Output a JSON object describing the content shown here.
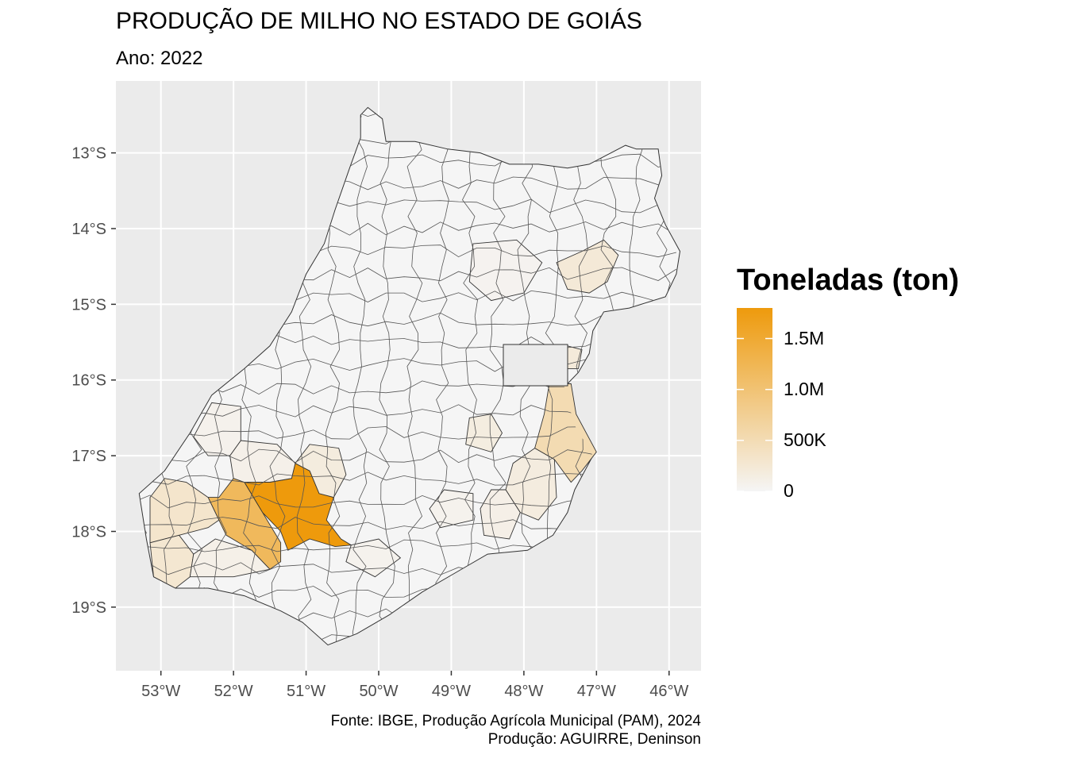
{
  "title": "PRODUÇÃO DE MILHO NO ESTADO DE GOIÁS",
  "subtitle": "Ano: 2022",
  "caption": {
    "line1": "Fonte: IBGE, Produção Agrícola Municipal (PAM), 2024",
    "line2": "Produção: AGUIRRE, Deninson"
  },
  "colors": {
    "panel": "#EBEBEB",
    "grid": "#FFFFFF",
    "low": "#F5F5F5",
    "high": "#EE9A0C",
    "border": "#333333"
  },
  "legend": {
    "title": "Toneladas (ton)",
    "min": 0,
    "max": 1800000,
    "breaks": [
      {
        "value": 0,
        "label": "0"
      },
      {
        "value": 500000,
        "label": "500K"
      },
      {
        "value": 1000000,
        "label": "1.0M"
      },
      {
        "value": 1500000,
        "label": "1.5M"
      }
    ]
  },
  "chart_data": {
    "type": "choropleth",
    "x_ticks": [
      {
        "value": -53,
        "label": "53°W"
      },
      {
        "value": -52,
        "label": "52°W"
      },
      {
        "value": -51,
        "label": "51°W"
      },
      {
        "value": -50,
        "label": "50°W"
      },
      {
        "value": -49,
        "label": "49°W"
      },
      {
        "value": -48,
        "label": "48°W"
      },
      {
        "value": -47,
        "label": "47°W"
      },
      {
        "value": -46,
        "label": "46°W"
      }
    ],
    "y_ticks": [
      {
        "value": -13,
        "label": "13°S"
      },
      {
        "value": -14,
        "label": "14°S"
      },
      {
        "value": -15,
        "label": "15°S"
      },
      {
        "value": -16,
        "label": "16°S"
      },
      {
        "value": -17,
        "label": "17°S"
      },
      {
        "value": -18,
        "label": "18°S"
      },
      {
        "value": -19,
        "label": "19°S"
      }
    ],
    "xlim": [
      -53.62,
      -45.56
    ],
    "ylim": [
      -19.84,
      -12.05
    ],
    "regions": [
      {
        "id": "rio-verde",
        "value": 1800000,
        "points": [
          [
            -51.15,
            -17.1
          ],
          [
            -50.95,
            -17.2
          ],
          [
            -50.82,
            -17.5
          ],
          [
            -50.62,
            -17.55
          ],
          [
            -50.72,
            -17.85
          ],
          [
            -50.52,
            -18.1
          ],
          [
            -50.38,
            -18.18
          ],
          [
            -50.6,
            -18.2
          ],
          [
            -50.95,
            -18.1
          ],
          [
            -51.25,
            -18.25
          ],
          [
            -51.35,
            -18.0
          ],
          [
            -51.6,
            -17.75
          ],
          [
            -51.85,
            -17.35
          ],
          [
            -51.5,
            -17.35
          ],
          [
            -51.2,
            -17.3
          ]
        ]
      },
      {
        "id": "jatai",
        "value": 1180000,
        "points": [
          [
            -51.85,
            -17.35
          ],
          [
            -52.0,
            -17.3
          ],
          [
            -52.2,
            -17.55
          ],
          [
            -52.35,
            -17.55
          ],
          [
            -52.2,
            -17.85
          ],
          [
            -52.1,
            -18.05
          ],
          [
            -51.75,
            -18.25
          ],
          [
            -51.5,
            -18.5
          ],
          [
            -51.35,
            -18.4
          ],
          [
            -51.35,
            -18.15
          ],
          [
            -51.6,
            -17.75
          ]
        ]
      },
      {
        "id": "mineiros",
        "value": 320000,
        "points": [
          [
            -52.35,
            -17.55
          ],
          [
            -52.65,
            -17.35
          ],
          [
            -52.95,
            -17.3
          ],
          [
            -53.15,
            -17.55
          ],
          [
            -53.15,
            -18.15
          ],
          [
            -52.75,
            -18.05
          ],
          [
            -52.35,
            -17.95
          ],
          [
            -52.2,
            -17.85
          ]
        ]
      },
      {
        "id": "chapadao-do-ceu",
        "value": 280000,
        "points": [
          [
            -52.75,
            -18.05
          ],
          [
            -53.15,
            -18.15
          ],
          [
            -53.1,
            -18.6
          ],
          [
            -52.8,
            -18.75
          ],
          [
            -52.6,
            -18.6
          ],
          [
            -52.55,
            -18.3
          ]
        ]
      },
      {
        "id": "serranopolis",
        "value": 100000,
        "points": [
          [
            -52.55,
            -18.3
          ],
          [
            -52.25,
            -18.1
          ],
          [
            -51.75,
            -18.25
          ],
          [
            -51.5,
            -18.5
          ],
          [
            -52.0,
            -18.6
          ],
          [
            -52.6,
            -18.6
          ]
        ]
      },
      {
        "id": "cristalina",
        "value": 520000,
        "points": [
          [
            -47.65,
            -16.05
          ],
          [
            -47.35,
            -16.05
          ],
          [
            -47.28,
            -16.45
          ],
          [
            -47.0,
            -16.95
          ],
          [
            -47.2,
            -17.2
          ],
          [
            -47.35,
            -17.35
          ],
          [
            -47.58,
            -17.05
          ],
          [
            -47.85,
            -16.9
          ],
          [
            -47.72,
            -16.45
          ]
        ]
      },
      {
        "id": "paracatu-border",
        "value": 210000,
        "points": [
          [
            -47.4,
            -15.55
          ],
          [
            -47.2,
            -15.6
          ],
          [
            -47.25,
            -15.85
          ],
          [
            -47.5,
            -15.85
          ]
        ]
      },
      {
        "id": "montividiu",
        "value": 180000,
        "points": [
          [
            -51.15,
            -17.1
          ],
          [
            -50.95,
            -16.85
          ],
          [
            -50.55,
            -16.9
          ],
          [
            -50.45,
            -17.25
          ],
          [
            -50.62,
            -17.55
          ],
          [
            -50.82,
            -17.5
          ],
          [
            -50.95,
            -17.2
          ]
        ]
      },
      {
        "id": "parauna",
        "value": 90000,
        "points": [
          [
            -51.85,
            -17.35
          ],
          [
            -51.5,
            -17.35
          ],
          [
            -51.2,
            -17.3
          ],
          [
            -51.15,
            -17.1
          ],
          [
            -51.4,
            -16.85
          ],
          [
            -51.9,
            -16.8
          ],
          [
            -52.05,
            -17.0
          ],
          [
            -52.0,
            -17.3
          ]
        ]
      },
      {
        "id": "catalao",
        "value": 170000,
        "points": [
          [
            -47.85,
            -16.9
          ],
          [
            -47.58,
            -17.05
          ],
          [
            -47.55,
            -17.55
          ],
          [
            -47.8,
            -17.85
          ],
          [
            -48.05,
            -17.75
          ],
          [
            -48.25,
            -17.45
          ],
          [
            -48.15,
            -17.1
          ]
        ]
      },
      {
        "id": "ipameri",
        "value": 110000,
        "points": [
          [
            -48.25,
            -17.45
          ],
          [
            -48.05,
            -17.75
          ],
          [
            -48.2,
            -18.1
          ],
          [
            -48.55,
            -18.05
          ],
          [
            -48.6,
            -17.7
          ],
          [
            -48.45,
            -17.45
          ]
        ]
      },
      {
        "id": "silvania",
        "value": 160000,
        "points": [
          [
            -48.75,
            -16.5
          ],
          [
            -48.45,
            -16.45
          ],
          [
            -48.3,
            -16.7
          ],
          [
            -48.45,
            -16.95
          ],
          [
            -48.8,
            -16.85
          ]
        ]
      },
      {
        "id": "posse-region",
        "value": 230000,
        "points": [
          [
            -46.9,
            -14.15
          ],
          [
            -46.7,
            -14.35
          ],
          [
            -46.85,
            -14.7
          ],
          [
            -47.1,
            -14.85
          ],
          [
            -47.4,
            -14.8
          ],
          [
            -47.55,
            -14.45
          ],
          [
            -47.2,
            -14.3
          ]
        ]
      },
      {
        "id": "niquelandia-region",
        "value": 50000,
        "points": [
          [
            -48.7,
            -14.2
          ],
          [
            -48.1,
            -14.15
          ],
          [
            -47.75,
            -14.45
          ],
          0,
          [
            -48.0,
            -14.85
          ],
          [
            -48.45,
            -14.95
          ],
          [
            -48.75,
            -14.7
          ]
        ]
      },
      {
        "id": "caiaponia",
        "value": 70000,
        "points": [
          [
            -52.05,
            -17.0
          ],
          [
            -51.9,
            -16.8
          ],
          [
            -51.9,
            -16.35
          ],
          [
            -52.3,
            -16.3
          ],
          [
            -52.55,
            -16.75
          ],
          [
            -52.35,
            -17.0
          ]
        ]
      },
      {
        "id": "quirinopolis",
        "value": 60000,
        "points": [
          [
            -50.38,
            -18.18
          ],
          [
            -50.0,
            -18.1
          ],
          [
            -49.7,
            -18.35
          ],
          [
            -50.05,
            -18.6
          ],
          [
            -50.45,
            -18.4
          ]
        ]
      },
      {
        "id": "morrinhos",
        "value": 60000,
        "points": [
          [
            -49.1,
            -17.45
          ],
          [
            -48.7,
            -17.5
          ],
          [
            -48.7,
            -17.85
          ],
          [
            -49.15,
            -17.95
          ],
          [
            -49.3,
            -17.7
          ]
        ]
      }
    ]
  }
}
